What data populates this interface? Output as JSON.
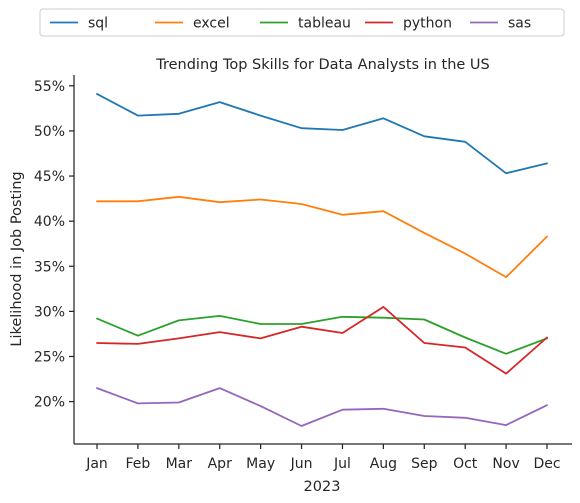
{
  "chart_data": {
    "type": "line",
    "title": "Trending Top Skills for Data Analysts in the US",
    "xlabel": "2023",
    "ylabel": "Likelihood in Job Posting",
    "categories": [
      "Jan",
      "Feb",
      "Mar",
      "Apr",
      "May",
      "Jun",
      "Jul",
      "Aug",
      "Sep",
      "Oct",
      "Nov",
      "Dec"
    ],
    "y_unit": "%",
    "ylim": [
      15.3,
      56.2
    ],
    "yticks": [
      20,
      25,
      30,
      35,
      40,
      45,
      50,
      55
    ],
    "ytick_labels": [
      "20%",
      "25%",
      "30%",
      "35%",
      "40%",
      "45%",
      "50%",
      "55%"
    ],
    "grid": false,
    "legend_position": "top",
    "series": [
      {
        "name": "sql",
        "color": "#1f77b4",
        "values": [
          54.1,
          51.7,
          51.9,
          53.2,
          51.7,
          50.3,
          50.1,
          51.4,
          49.4,
          48.8,
          45.3,
          46.4
        ]
      },
      {
        "name": "excel",
        "color": "#ff7f0e",
        "values": [
          42.2,
          42.2,
          42.7,
          42.1,
          42.4,
          41.9,
          40.7,
          41.1,
          38.7,
          36.4,
          33.8,
          38.3
        ]
      },
      {
        "name": "tableau",
        "color": "#2ca02c",
        "values": [
          29.2,
          27.3,
          29.0,
          29.5,
          28.6,
          28.6,
          29.4,
          29.3,
          29.1,
          27.1,
          25.3,
          27.0
        ]
      },
      {
        "name": "python",
        "color": "#d62728",
        "values": [
          26.5,
          26.4,
          27.0,
          27.7,
          27.0,
          28.3,
          27.6,
          30.5,
          26.5,
          26.0,
          23.1,
          27.1
        ]
      },
      {
        "name": "sas",
        "color": "#9467bd",
        "values": [
          21.5,
          19.8,
          19.9,
          21.5,
          19.5,
          17.3,
          19.1,
          19.2,
          18.4,
          18.2,
          17.4,
          19.6
        ]
      }
    ]
  }
}
